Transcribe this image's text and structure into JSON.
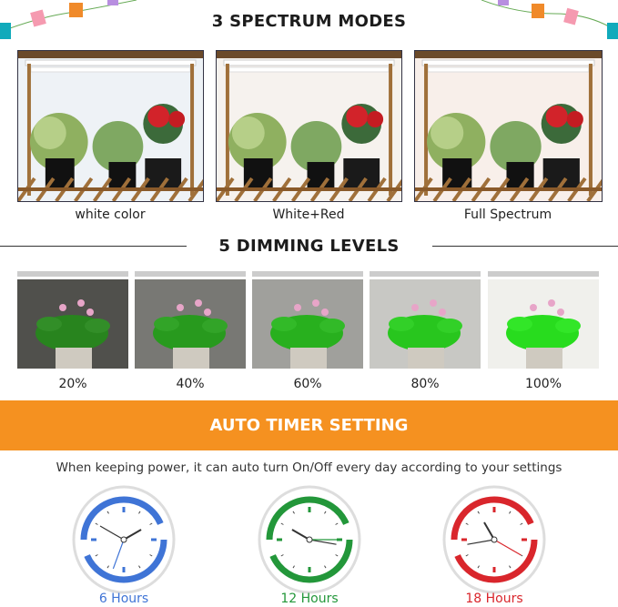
{
  "spectrum": {
    "title": "3 SPECTRUM MODES",
    "modes": [
      {
        "label": "white color",
        "tint": "#eef2f6"
      },
      {
        "label": "White+Red",
        "tint": "#f6f2ee"
      },
      {
        "label": "Full Spectrum",
        "tint": "#f8efea"
      }
    ]
  },
  "dimming": {
    "title": "5 DIMMING LEVELS",
    "levels": [
      {
        "label": "20%",
        "brightness": 0.2
      },
      {
        "label": "40%",
        "brightness": 0.4
      },
      {
        "label": "60%",
        "brightness": 0.6
      },
      {
        "label": "80%",
        "brightness": 0.8
      },
      {
        "label": "100%",
        "brightness": 1.0
      }
    ]
  },
  "timer": {
    "title": "AUTO TIMER SETTING",
    "band_color": "#f59120",
    "description": "When keeping power, it can auto turn On/Off every day according to your settings",
    "options": [
      {
        "label": "6 Hours",
        "color": "#3f74d6",
        "icon": "clock-cycle-icon"
      },
      {
        "label": "12 Hours",
        "color": "#23973a",
        "icon": "clock-cycle-icon"
      },
      {
        "label": "18 Hours",
        "color": "#d9262c",
        "icon": "clock-cycle-icon"
      }
    ]
  },
  "decorations": {
    "icon": "gift-garland-icon"
  }
}
